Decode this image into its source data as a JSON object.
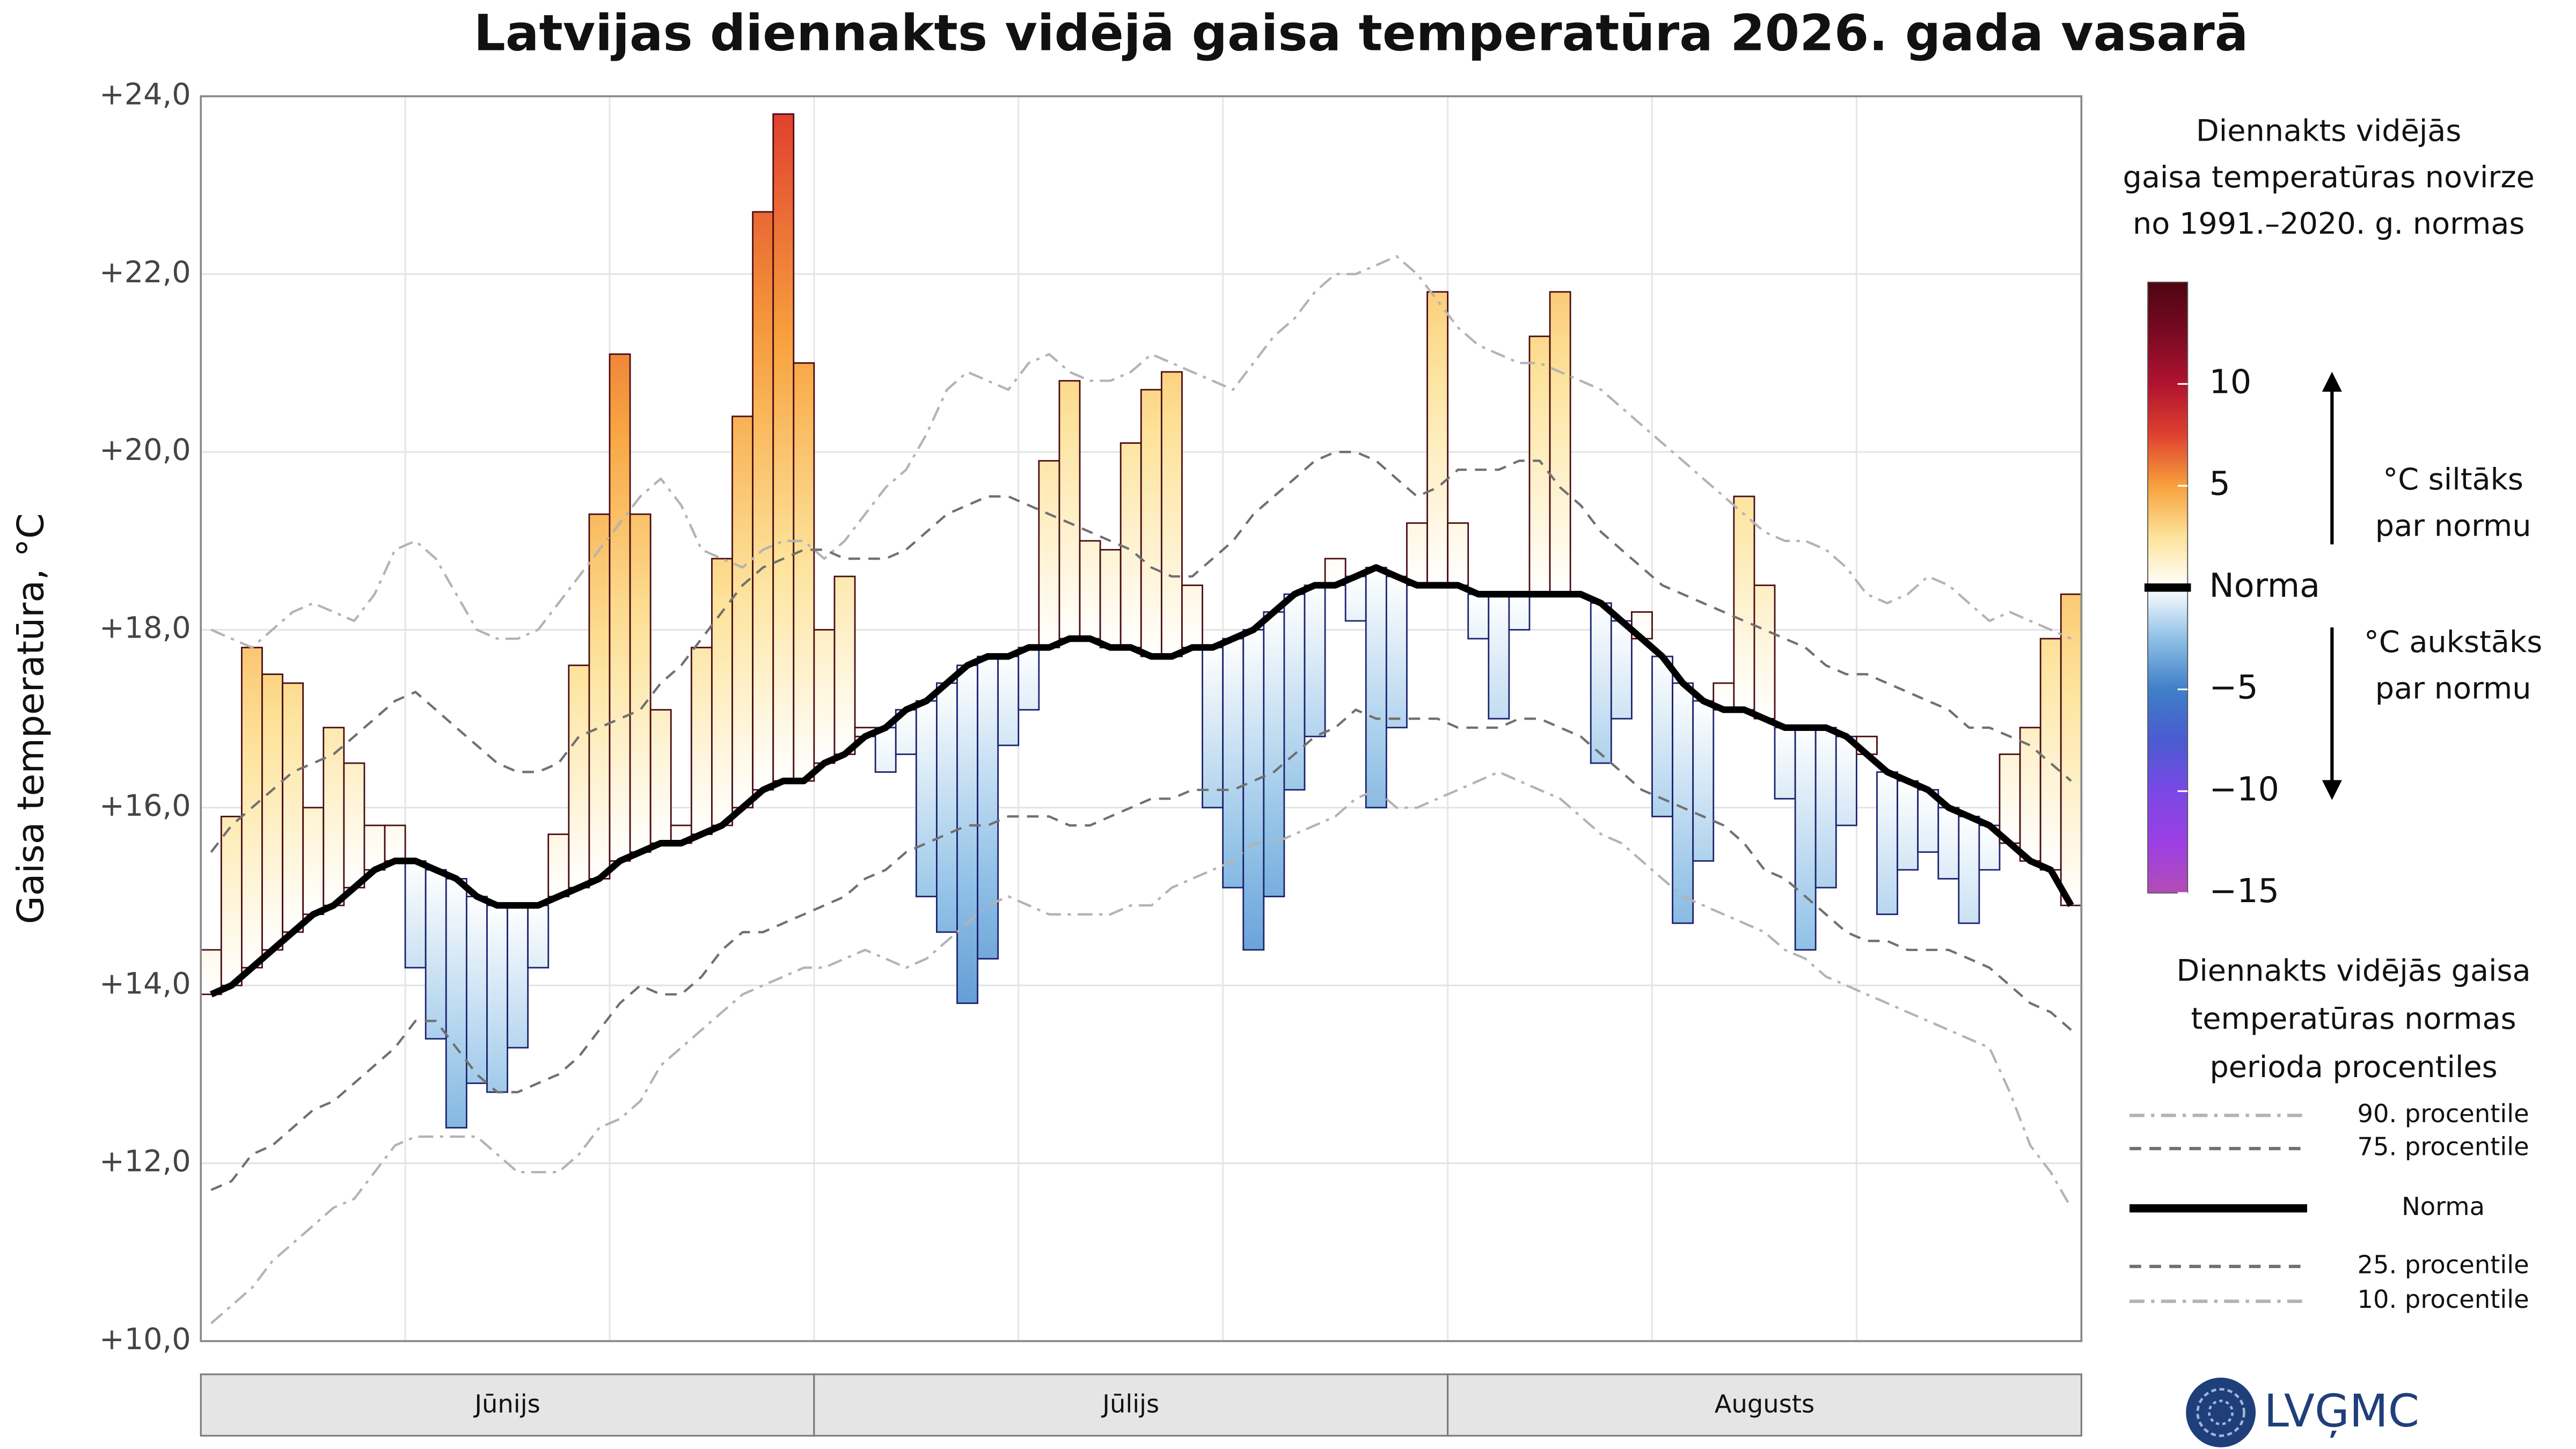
{
  "chart_data": {
    "type": "bar",
    "title": "Latvijas diennakts vidējā gaisa temperatūra 2026. gada vasarā",
    "y_label": "Gaisa temperatūra, °C",
    "months": [
      "Jūnijs",
      "Jūlijs",
      "Augusts"
    ],
    "ylim": [
      10,
      24
    ],
    "yticks": [
      {
        "value": 10,
        "label": "+10,0"
      },
      {
        "value": 12,
        "label": "+12,0"
      },
      {
        "value": 14,
        "label": "+14,0"
      },
      {
        "value": 16,
        "label": "+16,0"
      },
      {
        "value": 18,
        "label": "+18,0"
      },
      {
        "value": 20,
        "label": "+20,0"
      },
      {
        "value": 22,
        "label": "+22,0"
      },
      {
        "value": 24,
        "label": "+24,0"
      }
    ],
    "grid": true,
    "values": [
      14.4,
      15.9,
      17.8,
      17.5,
      17.4,
      16.0,
      16.9,
      16.5,
      15.8,
      15.8,
      14.2,
      13.4,
      12.4,
      12.9,
      12.8,
      13.3,
      14.2,
      15.7,
      17.6,
      19.3,
      21.1,
      19.3,
      17.1,
      15.8,
      17.8,
      18.8,
      20.4,
      22.7,
      23.8,
      21.0,
      18.0,
      18.6,
      16.9,
      16.4,
      16.6,
      15.0,
      14.6,
      13.8,
      14.3,
      16.7,
      17.1,
      19.9,
      20.8,
      19.0,
      18.9,
      20.1,
      20.7,
      20.9,
      18.5,
      16.0,
      15.1,
      14.4,
      15.0,
      16.2,
      16.8,
      18.8,
      18.1,
      16.0,
      16.9,
      19.2,
      21.8,
      19.2,
      17.9,
      17.0,
      18.0,
      21.3,
      21.8,
      18.4,
      16.5,
      17.0,
      18.2,
      15.9,
      14.7,
      15.4,
      17.4,
      19.5,
      18.5,
      16.1,
      14.4,
      15.1,
      15.8,
      16.8,
      14.8,
      15.3,
      15.5,
      15.2,
      14.7,
      15.3,
      16.6,
      16.9,
      17.9,
      18.4
    ],
    "norm_series": 2,
    "outline_warm": "#4a0c14",
    "outline_cold": "#1c2370",
    "series": [
      {
        "name": "90. procentile",
        "color": "#b3b3b3",
        "dash": "dashdot",
        "values": [
          18.0,
          17.9,
          17.8,
          18.0,
          18.2,
          18.3,
          18.2,
          18.1,
          18.4,
          18.9,
          19.0,
          18.8,
          18.4,
          18.0,
          17.9,
          17.9,
          18.0,
          18.3,
          18.6,
          18.9,
          19.2,
          19.5,
          19.7,
          19.4,
          18.9,
          18.8,
          18.7,
          18.9,
          19.0,
          19.0,
          18.8,
          19.0,
          19.3,
          19.6,
          19.8,
          20.2,
          20.7,
          20.9,
          20.8,
          20.7,
          21.0,
          21.1,
          20.9,
          20.8,
          20.8,
          20.9,
          21.1,
          21.0,
          20.9,
          20.8,
          20.7,
          21.0,
          21.3,
          21.5,
          21.8,
          22.0,
          22.0,
          22.1,
          22.2,
          22.0,
          21.7,
          21.4,
          21.2,
          21.1,
          21.0,
          21.0,
          20.9,
          20.8,
          20.7,
          20.5,
          20.3,
          20.1,
          19.9,
          19.7,
          19.5,
          19.3,
          19.1,
          19.0,
          19.0,
          18.9,
          18.7,
          18.4,
          18.3,
          18.4,
          18.6,
          18.5,
          18.3,
          18.1,
          18.2,
          18.1,
          18.0,
          17.9
        ]
      },
      {
        "name": "75. procentile",
        "color": "#707070",
        "dash": "dashed",
        "values": [
          15.5,
          15.8,
          16.0,
          16.2,
          16.4,
          16.5,
          16.6,
          16.8,
          17.0,
          17.2,
          17.3,
          17.1,
          16.9,
          16.7,
          16.5,
          16.4,
          16.4,
          16.5,
          16.8,
          16.9,
          17.0,
          17.1,
          17.4,
          17.6,
          17.9,
          18.2,
          18.5,
          18.7,
          18.8,
          18.9,
          18.9,
          18.8,
          18.8,
          18.8,
          18.9,
          19.1,
          19.3,
          19.4,
          19.5,
          19.5,
          19.4,
          19.3,
          19.2,
          19.1,
          19.0,
          18.9,
          18.7,
          18.6,
          18.6,
          18.8,
          19.0,
          19.3,
          19.5,
          19.7,
          19.9,
          20.0,
          20.0,
          19.9,
          19.7,
          19.5,
          19.6,
          19.8,
          19.8,
          19.8,
          19.9,
          19.9,
          19.6,
          19.4,
          19.1,
          18.9,
          18.7,
          18.5,
          18.4,
          18.3,
          18.2,
          18.1,
          18.0,
          17.9,
          17.8,
          17.6,
          17.5,
          17.5,
          17.4,
          17.3,
          17.2,
          17.1,
          16.9,
          16.9,
          16.8,
          16.7,
          16.5,
          16.3
        ]
      },
      {
        "name": "Norma",
        "color": "#000000",
        "dash": "solid",
        "values": [
          13.9,
          14.0,
          14.2,
          14.4,
          14.6,
          14.8,
          14.9,
          15.1,
          15.3,
          15.4,
          15.4,
          15.3,
          15.2,
          15.0,
          14.9,
          14.9,
          14.9,
          15.0,
          15.1,
          15.2,
          15.4,
          15.5,
          15.6,
          15.6,
          15.7,
          15.8,
          16.0,
          16.2,
          16.3,
          16.3,
          16.5,
          16.6,
          16.8,
          16.9,
          17.1,
          17.2,
          17.4,
          17.6,
          17.7,
          17.7,
          17.8,
          17.8,
          17.9,
          17.9,
          17.8,
          17.8,
          17.7,
          17.7,
          17.8,
          17.8,
          17.9,
          18.0,
          18.2,
          18.4,
          18.5,
          18.5,
          18.6,
          18.7,
          18.6,
          18.5,
          18.5,
          18.5,
          18.4,
          18.4,
          18.4,
          18.4,
          18.4,
          18.4,
          18.3,
          18.1,
          17.9,
          17.7,
          17.4,
          17.2,
          17.1,
          17.1,
          17.0,
          16.9,
          16.9,
          16.9,
          16.8,
          16.6,
          16.4,
          16.3,
          16.2,
          16.0,
          15.9,
          15.8,
          15.6,
          15.4,
          15.3,
          14.9
        ]
      },
      {
        "name": "25. procentile",
        "color": "#707070",
        "dash": "dashed",
        "values": [
          11.7,
          11.8,
          12.1,
          12.2,
          12.4,
          12.6,
          12.7,
          12.9,
          13.1,
          13.3,
          13.6,
          13.6,
          13.3,
          13.0,
          12.8,
          12.8,
          12.9,
          13.0,
          13.2,
          13.5,
          13.8,
          14.0,
          13.9,
          13.9,
          14.1,
          14.4,
          14.6,
          14.6,
          14.7,
          14.8,
          14.9,
          15.0,
          15.2,
          15.3,
          15.5,
          15.6,
          15.7,
          15.8,
          15.8,
          15.9,
          15.9,
          15.9,
          15.8,
          15.8,
          15.9,
          16.0,
          16.1,
          16.1,
          16.2,
          16.2,
          16.2,
          16.3,
          16.4,
          16.6,
          16.8,
          16.9,
          17.1,
          17.0,
          17.0,
          17.0,
          17.0,
          16.9,
          16.9,
          16.9,
          17.0,
          17.0,
          16.9,
          16.8,
          16.6,
          16.4,
          16.2,
          16.1,
          16.0,
          15.9,
          15.8,
          15.6,
          15.3,
          15.2,
          15.0,
          14.8,
          14.6,
          14.5,
          14.5,
          14.4,
          14.4,
          14.4,
          14.3,
          14.2,
          14.0,
          13.8,
          13.7,
          13.5
        ]
      },
      {
        "name": "10. procentile",
        "color": "#b3b3b3",
        "dash": "dashdot",
        "values": [
          10.2,
          10.4,
          10.6,
          10.9,
          11.1,
          11.3,
          11.5,
          11.6,
          11.9,
          12.2,
          12.3,
          12.3,
          12.3,
          12.3,
          12.1,
          11.9,
          11.9,
          11.9,
          12.1,
          12.4,
          12.5,
          12.7,
          13.1,
          13.3,
          13.5,
          13.7,
          13.9,
          14.0,
          14.1,
          14.2,
          14.2,
          14.3,
          14.4,
          14.3,
          14.2,
          14.3,
          14.5,
          14.7,
          14.9,
          15.0,
          14.9,
          14.8,
          14.8,
          14.8,
          14.8,
          14.9,
          14.9,
          15.1,
          15.2,
          15.3,
          15.4,
          15.6,
          15.6,
          15.7,
          15.8,
          15.9,
          16.1,
          16.2,
          16.0,
          16.0,
          16.1,
          16.2,
          16.3,
          16.4,
          16.3,
          16.2,
          16.1,
          15.9,
          15.7,
          15.6,
          15.4,
          15.2,
          15.0,
          14.9,
          14.8,
          14.7,
          14.6,
          14.4,
          14.3,
          14.1,
          14.0,
          13.9,
          13.8,
          13.7,
          13.6,
          13.5,
          13.4,
          13.3,
          12.8,
          12.2,
          11.9,
          11.5
        ]
      }
    ],
    "legend_title": [
      "Diennakts vidējās gaisa",
      "temperatūras normas",
      "perioda procentiles"
    ],
    "colorbar": {
      "title": [
        "Diennakts vidējās",
        "gaisa temperatūras novirze",
        "no 1991.–2020. g. normas"
      ],
      "lim": [
        -15,
        15
      ],
      "ticks": [
        10,
        5,
        {
          "value": 0,
          "label": "Norma"
        },
        {
          "value": -5,
          "label": "−5"
        },
        {
          "value": -10,
          "label": "−10"
        },
        {
          "value": -15,
          "label": "−15"
        }
      ],
      "colors": [
        "#b34cb5",
        "#9b3fe3",
        "#7a48e6",
        "#4a5bd0",
        "#3f7fc8",
        "#8fc0e6",
        "#ffffff",
        "#fde39a",
        "#f7a13c",
        "#e0402f",
        "#b0132f",
        "#7a0a22",
        "#4d0510"
      ],
      "warm_note": [
        "°C siltāks",
        "par normu"
      ],
      "cold_note": [
        "°C aukstāks",
        "par normu"
      ]
    },
    "logo": "LVĢMC"
  }
}
